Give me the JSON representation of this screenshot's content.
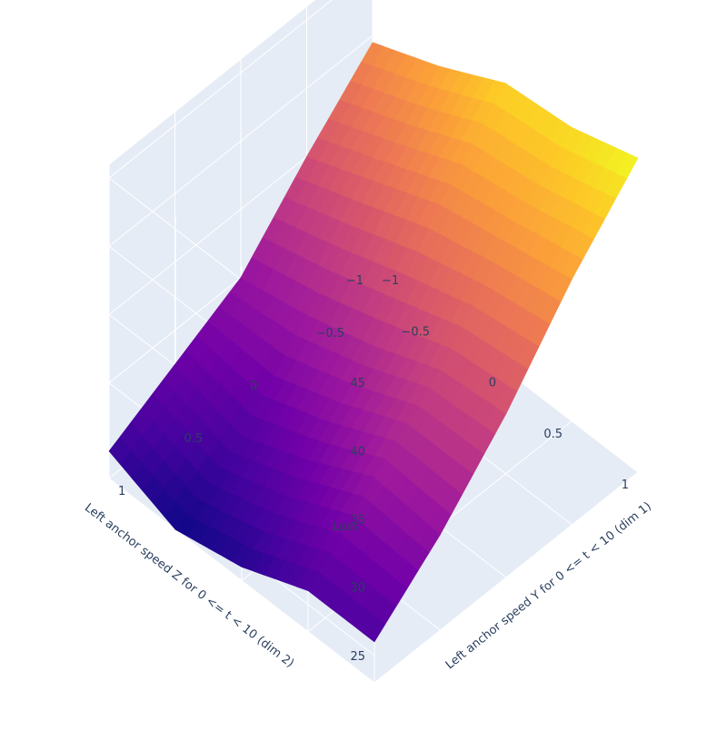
{
  "chart_data": {
    "type": "surface",
    "colorscale": "plasma",
    "background_color": "#e5ecf6",
    "grid_color": "#ffffff",
    "axes": {
      "x": {
        "title": "Left anchor speed Y for 0 <= t < 10 (dim 1)",
        "range": [
          -1,
          1
        ],
        "ticks": [
          "−1",
          "−0.5",
          "0",
          "0.5",
          "1"
        ]
      },
      "y": {
        "title": "Left anchor speed Z for 0 <= t < 10 (dim 2)",
        "range": [
          -1,
          1
        ],
        "ticks": [
          "−1",
          "−0.5",
          "0",
          "0.5",
          "1"
        ]
      },
      "z": {
        "title": "Loss",
        "range": [
          23,
          46
        ],
        "ticks": [
          "25",
          "30",
          "35",
          "40",
          "45"
        ]
      }
    },
    "x": [
      -1,
      -0.5,
      0,
      0.5,
      1
    ],
    "y": [
      -1,
      -0.5,
      0,
      0.5,
      1
    ],
    "z": [
      [
        39.5,
        35,
        30,
        27.5,
        25
      ],
      [
        41.5,
        37,
        31,
        26,
        23
      ],
      [
        44,
        39,
        32.5,
        28,
        24
      ],
      [
        44.5,
        40,
        34.5,
        30.5,
        26
      ],
      [
        46,
        41,
        35,
        30,
        26
      ]
    ]
  }
}
